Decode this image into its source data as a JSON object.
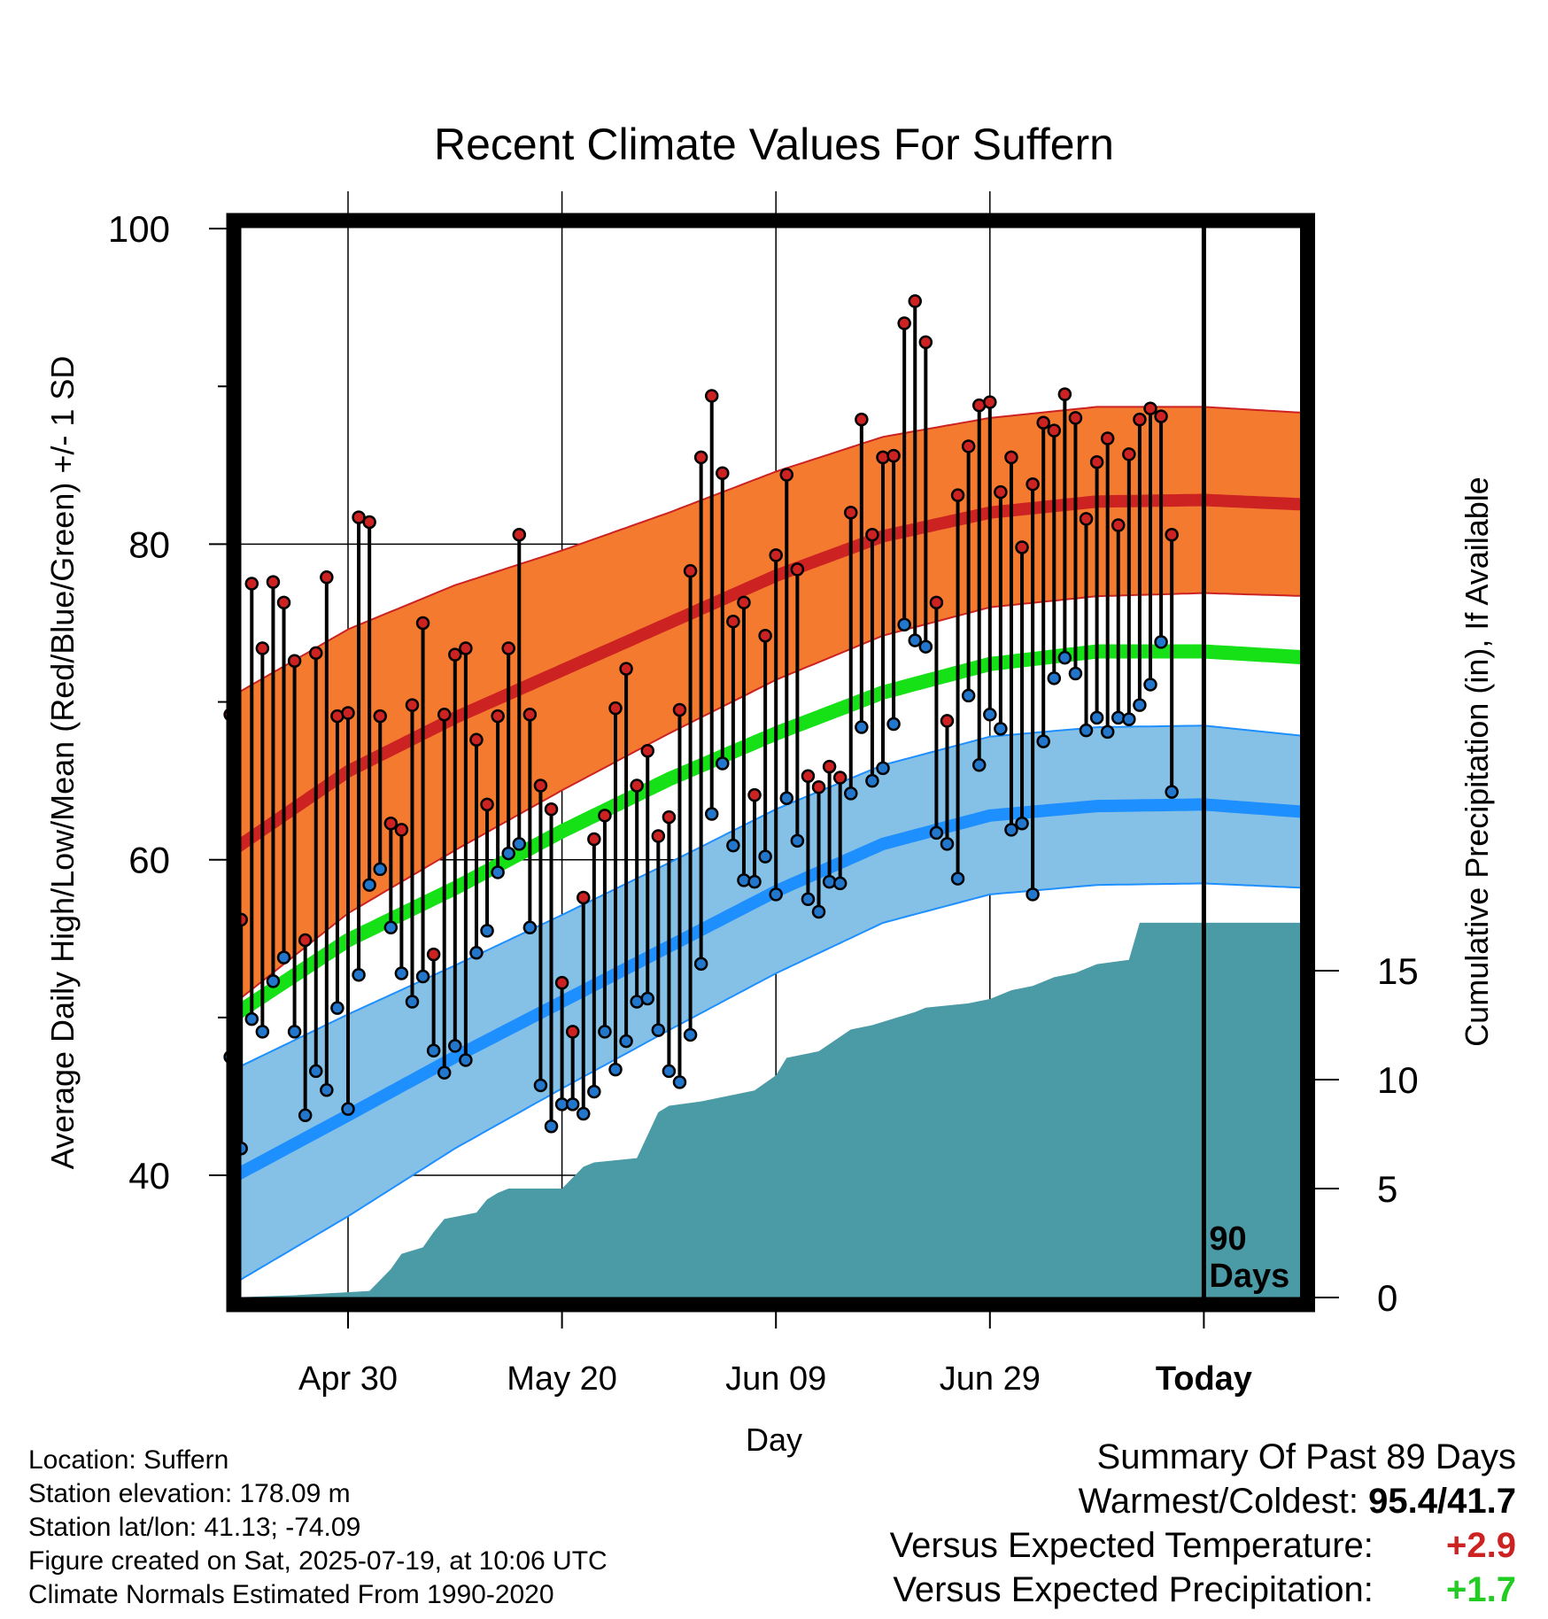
{
  "chart_data": {
    "type": "line",
    "title": "Recent Climate Values For Suffern",
    "xlabel": "Day",
    "ylabel": "Average Daily High/Low/Mean (Red/Blue/Green) +/- 1 SD",
    "y2label": "Cumulative Precipitation (in), If Available",
    "ylim": [
      32,
      100
    ],
    "yticks": [
      "40",
      "60",
      "80",
      "100"
    ],
    "y2lim": [
      0,
      90
    ],
    "y2ticks": [
      "0",
      "5",
      "10",
      "15"
    ],
    "xlim": [
      -11,
      90
    ],
    "xticks": [
      {
        "day": 0,
        "label": "Apr 30"
      },
      {
        "day": 20,
        "label": "May 20"
      },
      {
        "day": 40,
        "label": "Jun 09"
      },
      {
        "day": 60,
        "label": "Jun 29"
      },
      {
        "day": 80,
        "label": "Today"
      }
    ],
    "today_day": 80,
    "today_note": [
      "90",
      "Days"
    ],
    "grid": true,
    "normals": {
      "days": [
        -11,
        0,
        10,
        20,
        30,
        40,
        50,
        60,
        70,
        80,
        90
      ],
      "high_mean": [
        60.5,
        65.6,
        69.0,
        72.0,
        75.0,
        78.0,
        80.5,
        82.0,
        82.7,
        82.8,
        82.5
      ],
      "high_sd": [
        9.8,
        9.0,
        8.4,
        7.6,
        7.0,
        6.6,
        6.3,
        6.0,
        6.0,
        5.9,
        5.8
      ],
      "low_mean": [
        39.8,
        43.8,
        47.5,
        51.0,
        54.5,
        58.0,
        61.0,
        62.8,
        63.4,
        63.5,
        63.0
      ],
      "low_sd": [
        6.8,
        6.4,
        5.8,
        5.5,
        5.3,
        5.2,
        5.0,
        5.0,
        5.0,
        5.0,
        4.8
      ],
      "mean": [
        50.0,
        54.9,
        58.2,
        61.8,
        65.1,
        68.0,
        70.6,
        72.4,
        73.2,
        73.2,
        72.8
      ]
    },
    "series": [
      {
        "name": "High",
        "color": "#cc2222",
        "start_day": -11,
        "values": [
          69.2,
          56.2,
          77.5,
          73.4,
          77.6,
          76.3,
          72.6,
          54.9,
          73.1,
          77.9,
          69.1,
          69.3,
          81.7,
          81.4,
          69.1,
          62.3,
          61.9,
          69.8,
          75.0,
          54.0,
          69.2,
          73.0,
          73.4,
          67.6,
          63.5,
          69.1,
          73.4,
          80.6,
          69.2,
          64.7,
          63.2,
          52.2,
          49.1,
          57.6,
          61.3,
          62.8,
          69.6,
          72.1,
          64.7,
          66.9,
          61.5,
          62.7,
          69.5,
          78.3,
          85.5,
          89.4,
          84.5,
          75.1,
          76.3,
          64.1,
          74.2,
          79.3,
          84.4,
          78.4,
          65.3,
          64.6,
          65.9,
          65.2,
          82.0,
          87.9,
          80.6,
          85.5,
          85.6,
          94.0,
          95.4,
          92.8,
          76.3,
          68.8,
          83.1,
          86.2,
          88.8,
          89.0,
          83.3,
          85.5,
          79.8,
          83.8,
          87.7,
          87.2,
          89.5,
          88.0,
          81.6,
          85.2,
          86.7,
          81.2,
          85.7,
          87.9,
          88.6,
          88.1,
          80.6
        ]
      },
      {
        "name": "Low",
        "color": "#2277cc",
        "start_day": -11,
        "values": [
          47.5,
          41.7,
          49.9,
          49.1,
          52.3,
          53.8,
          49.1,
          43.8,
          46.6,
          45.4,
          50.6,
          44.2,
          52.7,
          58.4,
          59.4,
          55.7,
          52.8,
          51.0,
          52.6,
          47.9,
          46.5,
          48.2,
          47.3,
          54.1,
          55.5,
          59.2,
          60.4,
          61.0,
          55.7,
          45.7,
          43.1,
          44.5,
          44.5,
          43.9,
          45.3,
          49.1,
          46.7,
          48.5,
          51.0,
          51.2,
          49.2,
          46.6,
          45.9,
          48.9,
          53.4,
          62.9,
          66.1,
          60.9,
          58.7,
          58.6,
          60.2,
          57.8,
          63.9,
          61.2,
          57.5,
          56.7,
          58.6,
          58.5,
          64.2,
          68.4,
          65.0,
          65.8,
          68.6,
          74.9,
          73.9,
          73.5,
          61.7,
          61.0,
          58.8,
          70.4,
          66.0,
          69.2,
          68.3,
          61.9,
          62.3,
          57.8,
          67.5,
          71.5,
          72.8,
          71.8,
          68.2,
          69.0,
          68.1,
          69.0,
          68.9,
          69.8,
          71.1,
          73.8,
          64.3
        ]
      }
    ],
    "precip": {
      "days": [
        -11,
        -5,
        2,
        4,
        5,
        7,
        8,
        9,
        12,
        13,
        14,
        15,
        20,
        22,
        23,
        27,
        29,
        30,
        33,
        38,
        40,
        41,
        44,
        47,
        49,
        53,
        54,
        58,
        59,
        60,
        62,
        64,
        66,
        68,
        70,
        73,
        74,
        80,
        90
      ],
      "values": [
        0,
        0.1,
        0.3,
        1.3,
        2.0,
        2.3,
        3.0,
        3.6,
        3.9,
        4.5,
        4.8,
        5.0,
        5.0,
        6.0,
        6.2,
        6.4,
        8.5,
        8.8,
        9.0,
        9.5,
        10.2,
        11.0,
        11.3,
        12.3,
        12.5,
        13.1,
        13.3,
        13.5,
        13.6,
        13.7,
        14.1,
        14.3,
        14.7,
        14.9,
        15.3,
        15.5,
        17.2,
        17.2,
        17.2
      ]
    }
  },
  "meta": {
    "lines": [
      "Location: Suffern",
      "Station elevation: 178.09 m",
      "Station lat/lon: 41.13; -74.09",
      "Figure created on Sat, 2025-07-19, at 10:06 UTC",
      "Climate Normals Estimated From 1990-2020"
    ]
  },
  "summary": {
    "heading": "Summary Of Past 89 Days",
    "warmest_label": "Warmest/Coldest:",
    "warmest_value": "95.4",
    "coldest_value": "41.7",
    "temp_label": "Versus Expected Temperature:",
    "temp_value": "+2.9",
    "temp_color": "#cc2222",
    "precip_label": "Versus Expected Precipitation:",
    "precip_value": "+1.7",
    "precip_color": "#22cc22"
  },
  "colors": {
    "high_band": "#f47a30",
    "high_line": "#cc2222",
    "low_band": "#85c1e6",
    "low_line": "#1e8fff",
    "mean_line": "#16e016",
    "precip_fill": "#4a9ba6"
  }
}
